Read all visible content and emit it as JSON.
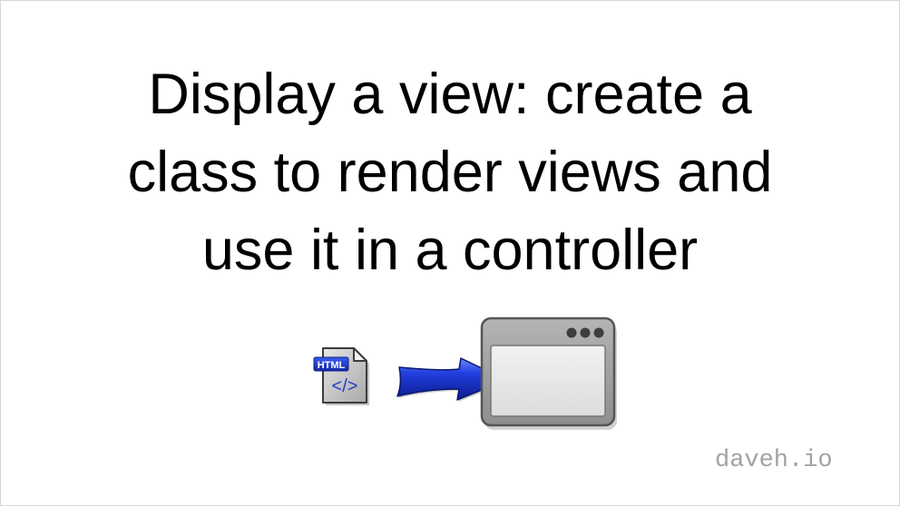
{
  "slide": {
    "title_lines": [
      "Display a view: create a",
      "class to render views and",
      "use it in a controller"
    ],
    "icons": {
      "file_icon_name": "html-file-icon",
      "file_icon_label": "HTML",
      "file_icon_glyph": "</>",
      "arrow_icon_name": "arrow-right-icon",
      "window_icon_name": "application-window-icon"
    },
    "watermark": "daveh.io",
    "colors": {
      "background": "#ffffff",
      "title_text": "#000000",
      "watermark_text": "#a3a3a3",
      "arrow_blue": "#1530c8",
      "html_badge_blue": "#1f3cc7",
      "window_gray": "#9a9a9a"
    }
  }
}
